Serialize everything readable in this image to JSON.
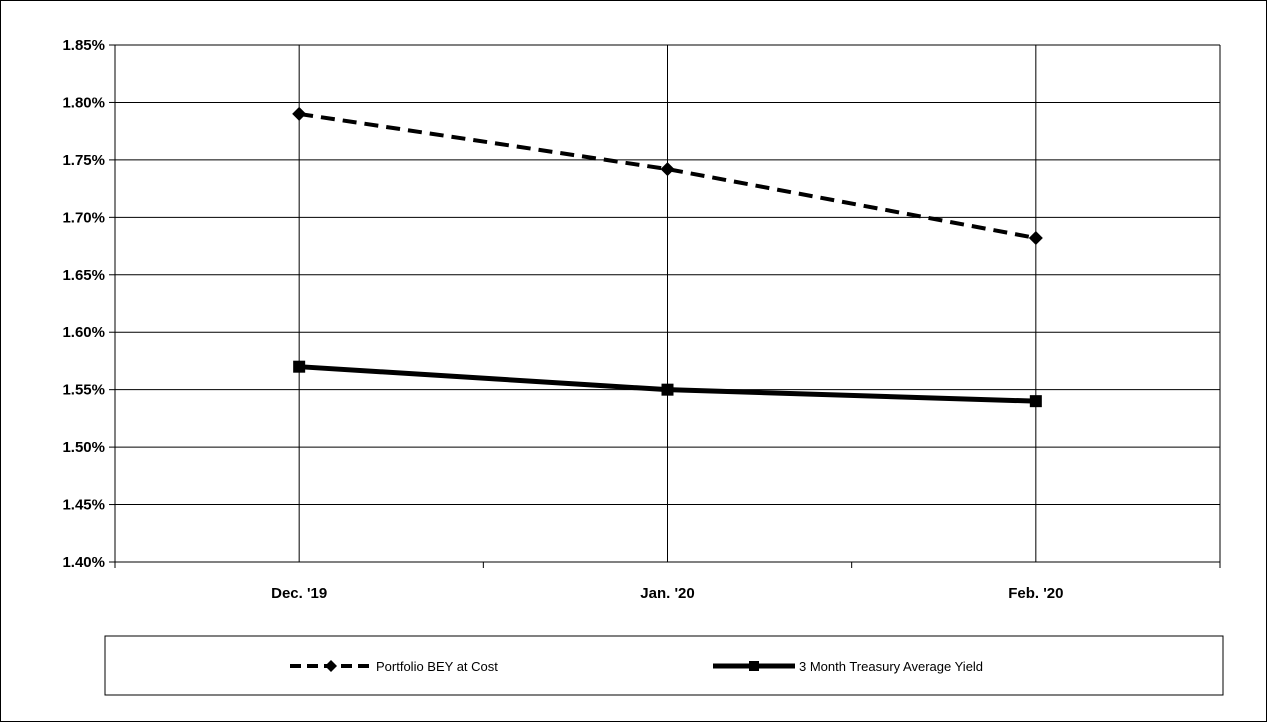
{
  "chart_data": {
    "type": "line",
    "title": "",
    "xlabel": "",
    "ylabel": "",
    "categories": [
      "Dec. '19",
      "Jan. '20",
      "Feb. '20"
    ],
    "ylim": [
      1.4,
      1.85
    ],
    "ytick_step": 0.05,
    "ytick_labels": [
      "1.40%",
      "1.45%",
      "1.50%",
      "1.55%",
      "1.60%",
      "1.65%",
      "1.70%",
      "1.75%",
      "1.80%",
      "1.85%"
    ],
    "grid": true,
    "legend_position": "bottom",
    "series": [
      {
        "name": "Portfolio BEY at Cost",
        "values": [
          1.79,
          1.742,
          1.682
        ],
        "line_style": "dashed",
        "marker": "diamond",
        "color": "#000000"
      },
      {
        "name": "3 Month Treasury Average Yield",
        "values": [
          1.57,
          1.55,
          1.54
        ],
        "line_style": "solid",
        "marker": "square",
        "color": "#000000"
      }
    ]
  }
}
